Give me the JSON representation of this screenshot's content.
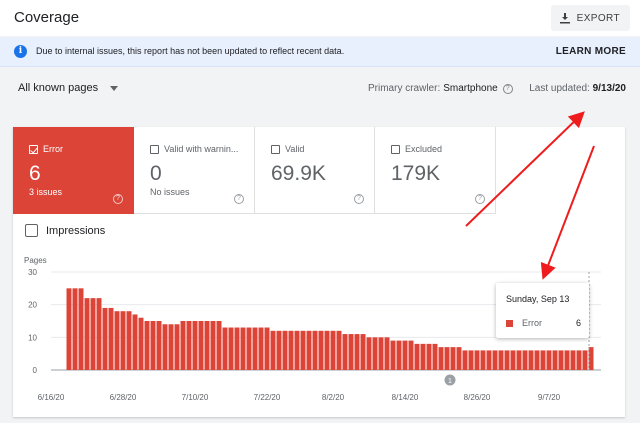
{
  "header": {
    "title": "Coverage",
    "export_label": "EXPORT"
  },
  "banner": {
    "message": "Due to internal issues, this report has not been updated to reflect recent data.",
    "learn_more": "LEARN MORE",
    "icon": "info-icon"
  },
  "filter": {
    "selected": "All known pages",
    "crawler_label": "Primary crawler:",
    "crawler_value": "Smartphone",
    "updated_label": "Last updated:",
    "updated_value": "9/13/20"
  },
  "tiles": [
    {
      "label": "Error",
      "value": "6",
      "sub": "3 issues",
      "checked": true
    },
    {
      "label": "Valid with warnin...",
      "value": "0",
      "sub": "No issues",
      "checked": false
    },
    {
      "label": "Valid",
      "value": "69.9K",
      "sub": "",
      "checked": false
    },
    {
      "label": "Excluded",
      "value": "179K",
      "sub": "",
      "checked": false
    }
  ],
  "impressions_label": "Impressions",
  "colors": {
    "error": "#db4437",
    "accent": "#1a73e8",
    "annotation": "#ee1c1c"
  },
  "chart_data": {
    "type": "bar",
    "ylabel": "Pages",
    "ylim": [
      0,
      30
    ],
    "yticks": [
      0,
      10,
      20,
      30
    ],
    "xtick_labels": [
      "6/16/20",
      "6/28/20",
      "7/10/20",
      "7/22/20",
      "8/2/20",
      "8/14/20",
      "8/26/20",
      "9/7/20"
    ],
    "annotation_marker": "1",
    "series": [
      {
        "name": "Error",
        "values": [
          25,
          25,
          25,
          22,
          22,
          22,
          19,
          19,
          18,
          18,
          18,
          17,
          16,
          15,
          15,
          15,
          14,
          14,
          14,
          15,
          15,
          15,
          15,
          15,
          15,
          15,
          13,
          13,
          13,
          13,
          13,
          13,
          13,
          13,
          12,
          12,
          12,
          12,
          12,
          12,
          12,
          12,
          12,
          12,
          12,
          12,
          11,
          11,
          11,
          11,
          10,
          10,
          10,
          10,
          9,
          9,
          9,
          9,
          8,
          8,
          8,
          8,
          7,
          7,
          7,
          7,
          6,
          6,
          6,
          6,
          6,
          6,
          6,
          6,
          6,
          6,
          6,
          6,
          6,
          6,
          6,
          6,
          6,
          6,
          6,
          6,
          6,
          7
        ]
      }
    ]
  },
  "tooltip": {
    "date": "Sunday, Sep 13",
    "series": "Error",
    "value": "6"
  }
}
